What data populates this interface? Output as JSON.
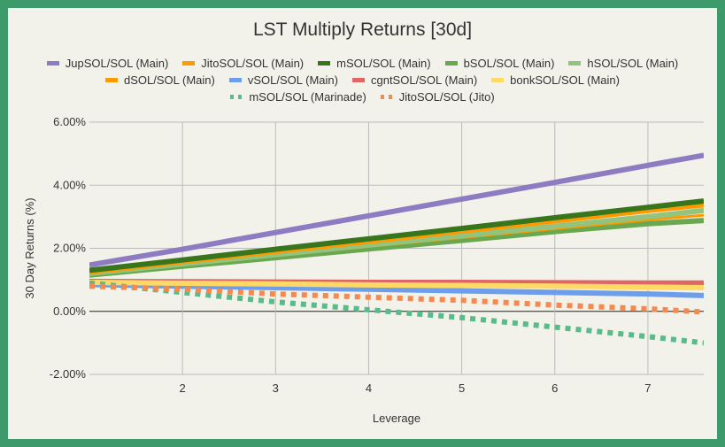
{
  "chart_data": {
    "type": "line",
    "title": "LST Multiply Returns [30d]",
    "xlabel": "Leverage",
    "ylabel": "30 Day Returns (%)",
    "xlim": [
      1,
      7.6
    ],
    "ylim": [
      -2,
      6
    ],
    "x_ticks": [
      "2",
      "3",
      "4",
      "5",
      "6",
      "7"
    ],
    "y_ticks": [
      "-2.00%",
      "0.00%",
      "2.00%",
      "4.00%",
      "6.00%"
    ],
    "grid": true,
    "legend": "top",
    "x": [
      1,
      2,
      3,
      4,
      5,
      6,
      7,
      7.6
    ],
    "series": [
      {
        "name": "JupSOL/SOL (Main)",
        "color": "#8e7cc3",
        "dashed": false,
        "values": [
          1.47,
          1.97,
          2.5,
          3.03,
          3.56,
          4.09,
          4.63,
          4.95
        ]
      },
      {
        "name": "JitoSOL/SOL (Main)",
        "color": "#ff9900",
        "dashed": false,
        "values": [
          1.25,
          1.58,
          1.9,
          2.22,
          2.55,
          2.87,
          3.2,
          3.38
        ]
      },
      {
        "name": "mSOL/SOL (Main)",
        "color": "#38761d",
        "dashed": false,
        "values": [
          1.3,
          1.63,
          1.97,
          2.3,
          2.63,
          2.97,
          3.3,
          3.5
        ]
      },
      {
        "name": "bSOL/SOL (Main)",
        "color": "#6aa84f",
        "dashed": false,
        "values": [
          1.15,
          1.43,
          1.7,
          1.98,
          2.25,
          2.53,
          2.78,
          2.88
        ]
      },
      {
        "name": "hSOL/SOL (Main)",
        "color": "#93c47d",
        "dashed": false,
        "values": [
          1.2,
          1.5,
          1.8,
          2.1,
          2.4,
          2.7,
          3.0,
          3.2
        ]
      },
      {
        "name": "dSOL/SOL (Main)",
        "color": "#ff9900",
        "dashed": false,
        "values": [
          1.22,
          1.5,
          1.78,
          2.06,
          2.34,
          2.62,
          2.9,
          3.05
        ]
      },
      {
        "name": "vSOL/SOL (Main)",
        "color": "#6d9eeb",
        "dashed": false,
        "values": [
          0.85,
          0.8,
          0.75,
          0.7,
          0.65,
          0.6,
          0.55,
          0.5
        ]
      },
      {
        "name": "cgntSOL/SOL (Main)",
        "color": "#e06666",
        "dashed": false,
        "values": [
          0.95,
          0.94,
          0.93,
          0.92,
          0.92,
          0.91,
          0.9,
          0.9
        ]
      },
      {
        "name": "bonkSOL/SOL (Main)",
        "color": "#ffd966",
        "dashed": false,
        "values": [
          0.92,
          0.89,
          0.87,
          0.84,
          0.82,
          0.8,
          0.77,
          0.75
        ]
      },
      {
        "name": "mSOL/SOL (Marinade)",
        "color": "#57bb8a",
        "dashed": true,
        "values": [
          0.9,
          0.6,
          0.3,
          0.05,
          -0.2,
          -0.5,
          -0.8,
          -1.0
        ]
      },
      {
        "name": "JitoSOL/SOL (Jito)",
        "color": "#f6894b",
        "dashed": true,
        "values": [
          0.8,
          0.7,
          0.55,
          0.45,
          0.35,
          0.2,
          0.08,
          -0.02
        ]
      }
    ]
  }
}
